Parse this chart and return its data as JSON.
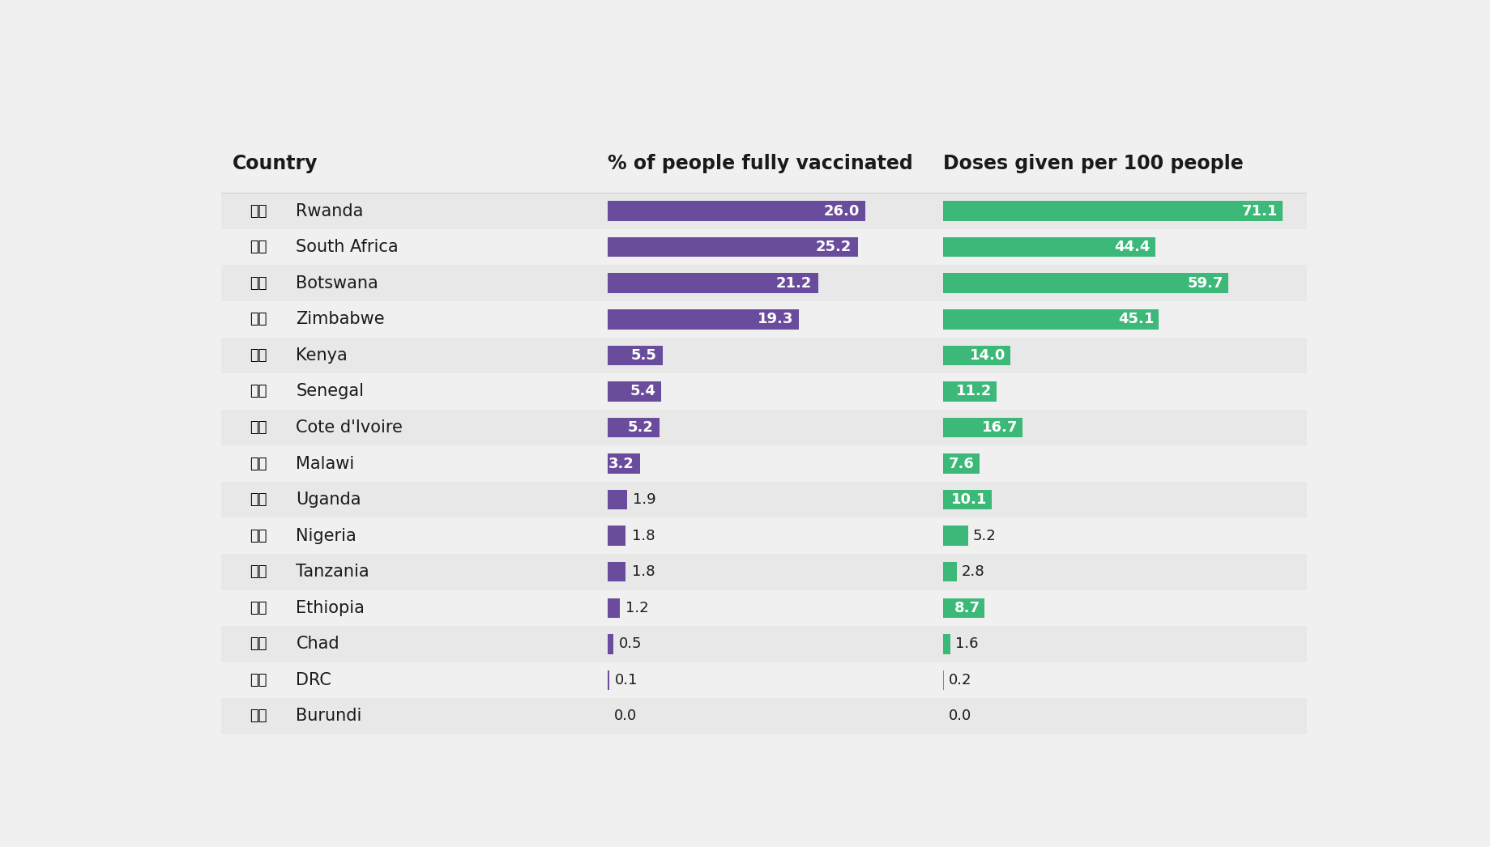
{
  "countries": [
    "Rwanda",
    "South Africa",
    "Botswana",
    "Zimbabwe",
    "Kenya",
    "Senegal",
    "Cote d'Ivoire",
    "Malawi",
    "Uganda",
    "Nigeria",
    "Tanzania",
    "Ethiopia",
    "Chad",
    "DRC",
    "Burundi"
  ],
  "vaccinated_pct": [
    26.0,
    25.2,
    21.2,
    19.3,
    5.5,
    5.4,
    5.2,
    3.2,
    1.9,
    1.8,
    1.8,
    1.2,
    0.5,
    0.1,
    0.0
  ],
  "doses_per_100": [
    71.1,
    44.4,
    59.7,
    45.1,
    14.0,
    11.2,
    16.7,
    7.6,
    10.1,
    5.2,
    2.8,
    8.7,
    1.6,
    0.2,
    0.0
  ],
  "purple_color": "#6a4c9c",
  "green_color": "#3cb878",
  "bg_color": "#f0f0f0",
  "row_colors": [
    "#e8e8e8",
    "#f0f0f0"
  ],
  "header_color": "#1a1a1a",
  "col1_header": "% of people fully vaccinated",
  "col2_header": "Doses given per 100 people",
  "country_header": "Country",
  "vax_max": 28.0,
  "doses_max": 75.0
}
